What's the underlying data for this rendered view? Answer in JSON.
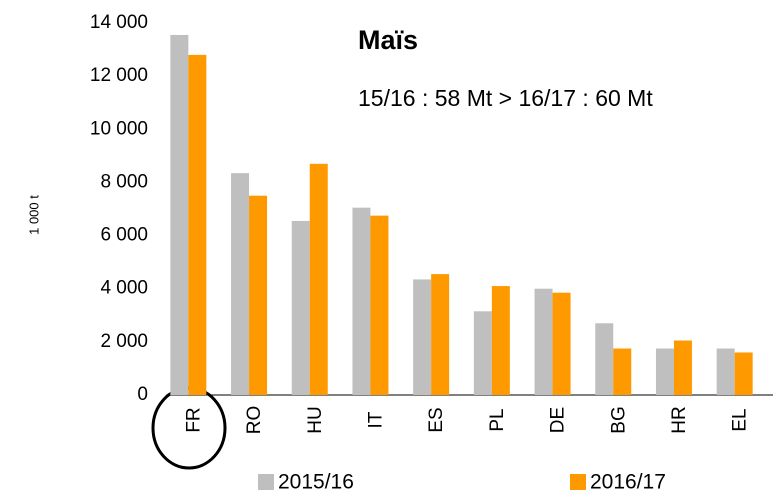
{
  "chart_data": {
    "type": "bar",
    "title": "Maïs",
    "subtitle": "15/16 : 58 Mt > 16/17 : 60 Mt",
    "y_label": "1 000 t",
    "categories": [
      "FR",
      "RO",
      "HU",
      "IT",
      "ES",
      "PL",
      "DE",
      "BG",
      "HR",
      "EL"
    ],
    "series": [
      {
        "name": "2015/16",
        "color": "#bfbfbf",
        "values": [
          13550,
          8350,
          6550,
          7050,
          4350,
          3150,
          4000,
          2700,
          1750,
          1750
        ]
      },
      {
        "name": "2016/17",
        "color": "#ff9900",
        "values": [
          12800,
          7500,
          8700,
          6750,
          4550,
          4100,
          3850,
          1750,
          2050,
          1600
        ]
      }
    ],
    "ylim": [
      0,
      14000
    ],
    "yticks": [
      0,
      {
        "value": 2000,
        "label": "2 000"
      },
      {
        "value": 4000,
        "label": "4 000"
      },
      {
        "value": 6000,
        "label": "6 000"
      },
      {
        "value": 8000,
        "label": "8 000"
      },
      {
        "value": 10000,
        "label": "10 000"
      },
      {
        "value": 12000,
        "label": "12 000"
      },
      {
        "value": 14000,
        "label": "14 000"
      }
    ],
    "grid": false
  }
}
